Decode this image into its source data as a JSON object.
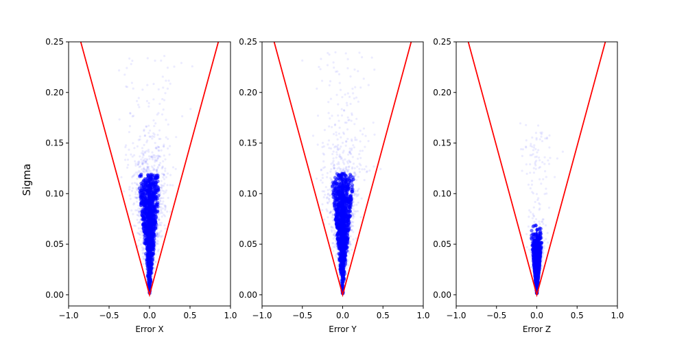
{
  "figure": {
    "ylabel": "Sigma"
  },
  "colors": {
    "points": "#0000ff",
    "bound_line": "#ff0000",
    "axes": "#000000"
  },
  "chart_data": [
    {
      "type": "scatter",
      "title": "",
      "xlabel": "Error X",
      "ylabel": "Sigma",
      "xlim": [
        -1.0,
        1.0
      ],
      "ylim": [
        -0.011,
        0.25
      ],
      "xticks": [
        -1.0,
        -0.5,
        0.0,
        0.5,
        1.0
      ],
      "xtick_labels": [
        "−1.0",
        "−0.5",
        "0.0",
        "0.5",
        "1.0"
      ],
      "yticks": [
        0.0,
        0.05,
        0.1,
        0.15,
        0.2,
        0.25
      ],
      "ytick_labels": [
        "0.00",
        "0.05",
        "0.10",
        "0.15",
        "0.20",
        "0.25"
      ],
      "grid": false,
      "point_cloud": {
        "sigma_peak": 0.08,
        "sigma_max": 0.24,
        "error_std_ratio": 1.0,
        "dense_sigma_upper": 0.12
      },
      "series": [
        {
          "type": "line",
          "x": [
            -0.85,
            0.0,
            0.85
          ],
          "y": [
            0.25,
            0.0,
            0.25
          ]
        }
      ]
    },
    {
      "type": "scatter",
      "title": "",
      "xlabel": "Error Y",
      "ylabel": "",
      "xlim": [
        -1.0,
        1.0
      ],
      "ylim": [
        -0.011,
        0.25
      ],
      "xticks": [
        -1.0,
        -0.5,
        0.0,
        0.5,
        1.0
      ],
      "xtick_labels": [
        "−1.0",
        "−0.5",
        "0.0",
        "0.5",
        "1.0"
      ],
      "yticks": [
        0.0,
        0.05,
        0.1,
        0.15,
        0.2,
        0.25
      ],
      "ytick_labels": [
        "0.00",
        "0.05",
        "0.10",
        "0.15",
        "0.20",
        "0.25"
      ],
      "grid": false,
      "point_cloud": {
        "sigma_peak": 0.08,
        "sigma_max": 0.24,
        "error_std_ratio": 1.0,
        "dense_sigma_upper": 0.12
      },
      "series": [
        {
          "type": "line",
          "x": [
            -0.85,
            0.0,
            0.85
          ],
          "y": [
            0.25,
            0.0,
            0.25
          ]
        }
      ]
    },
    {
      "type": "scatter",
      "title": "",
      "xlabel": "Error Z",
      "ylabel": "",
      "xlim": [
        -1.0,
        1.0
      ],
      "ylim": [
        -0.011,
        0.25
      ],
      "xticks": [
        -1.0,
        -0.5,
        0.0,
        0.5,
        1.0
      ],
      "xtick_labels": [
        "−1.0",
        "−0.5",
        "0.0",
        "0.5",
        "1.0"
      ],
      "yticks": [
        0.0,
        0.05,
        0.1,
        0.15,
        0.2,
        0.25
      ],
      "ytick_labels": [
        "0.00",
        "0.05",
        "0.10",
        "0.15",
        "0.20",
        "0.25"
      ],
      "grid": false,
      "point_cloud": {
        "sigma_peak": 0.03,
        "sigma_max": 0.17,
        "error_std_ratio": 0.8,
        "dense_sigma_upper": 0.07
      },
      "series": [
        {
          "type": "line",
          "x": [
            -0.85,
            0.0,
            0.85
          ],
          "y": [
            0.25,
            0.0,
            0.25
          ]
        }
      ]
    }
  ]
}
